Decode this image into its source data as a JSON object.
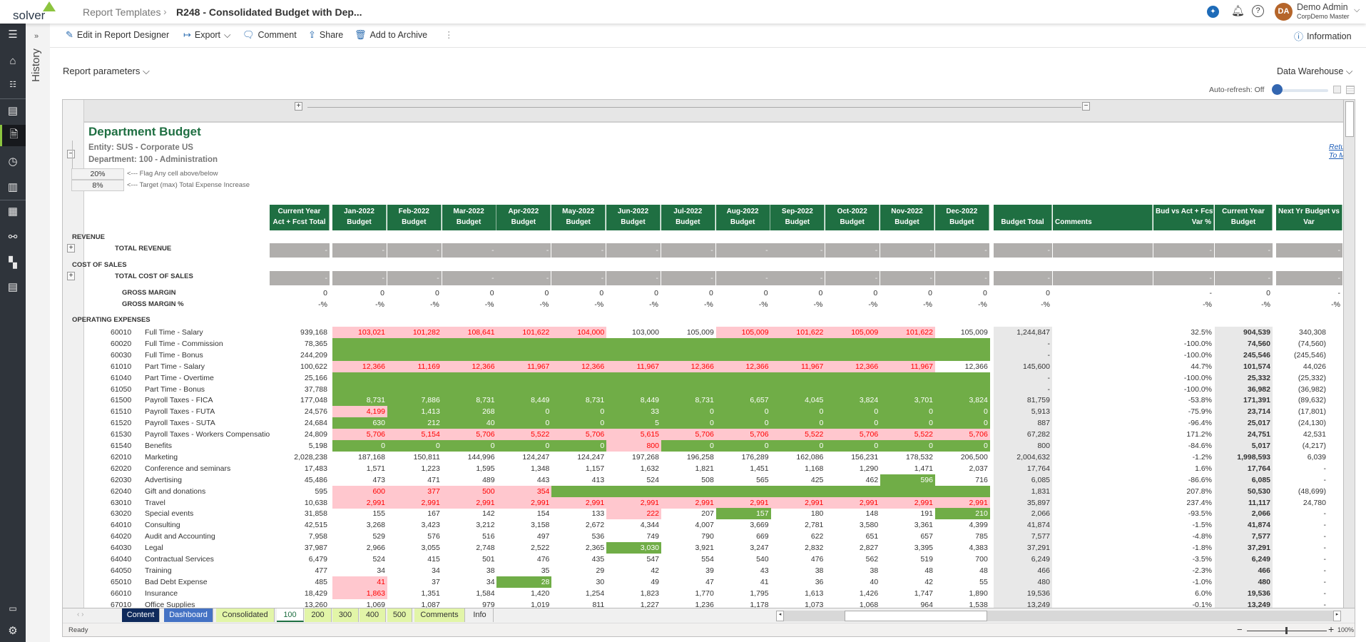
{
  "header": {
    "logo": "solver",
    "breadcrumb": [
      "Report Templates",
      "R248 - Consolidated Budget with Dep..."
    ],
    "user_initials": "DA",
    "user_name": "Demo Admin",
    "user_org": "CorpDemo Master",
    "avatar_color": "#b5652a"
  },
  "sidebar": {
    "icons": [
      "menu-icon",
      "home-icon",
      "tasks-icon",
      "reports-icon",
      "report-templates-icon",
      "history-icon",
      "library-icon",
      "calculator-icon",
      "workflow-icon",
      "dashboard-icon",
      "forms-icon"
    ],
    "bottom_icons": [
      "keyboard-icon",
      "gear-icon"
    ],
    "active": "report-templates-icon",
    "history_label": "History",
    "expand": "»"
  },
  "toolbar": {
    "edit": "Edit in Report Designer",
    "export": "Export",
    "comment": "Comment",
    "share": "Share",
    "archive": "Add to Archive",
    "more": "⋮",
    "information": "Information"
  },
  "params": {
    "label": "Report parameters",
    "data_source": "Data Warehouse",
    "auto_refresh": "Auto-refresh: Off"
  },
  "report": {
    "title": "Department Budget",
    "entity": "Entity: SUS - Corporate US",
    "department": "Department:  100 - Administration",
    "flag_value": "20%",
    "flag_label": "<--- Flag Any cell above/below",
    "target_value": "8%",
    "target_label": "<--- Target (max) Total Expense Increase",
    "return_link": "Return To Ma",
    "colors": {
      "header": "#1f6f42",
      "flag_high": "#ffc7ce",
      "flag_low": "#70ad47"
    },
    "columns": {
      "cy": [
        "Current Year",
        "Act + Fcst Total"
      ],
      "months": [
        "Jan-2022",
        "Feb-2022",
        "Mar-2022",
        "Apr-2022",
        "May-2022",
        "Jun-2022",
        "Jul-2022",
        "Aug-2022",
        "Sep-2022",
        "Oct-2022",
        "Nov-2022",
        "Dec-2022"
      ],
      "month_sub": "Budget",
      "budget_total": "Budget Total",
      "comments": "Comments",
      "budvs": [
        "Bud vs Act + Fcst",
        "Var %"
      ],
      "cybud": [
        "Current Year",
        "Budget"
      ],
      "next": [
        "Next Yr Budget vs CY",
        "Var"
      ]
    },
    "sections": {
      "revenue": "REVENUE",
      "total_revenue": "TOTAL REVENUE",
      "cos": "COST OF SALES",
      "total_cos": "TOTAL COST OF SALES",
      "gm": "GROSS MARGIN",
      "gmp": "GROSS MARGIN %",
      "opex": "OPERATING EXPENSES",
      "dash": "-",
      "zero": "0",
      "pct": "-%"
    },
    "rows": [
      {
        "code": "60010",
        "name": "Full Time - Salary",
        "cy": "939,168",
        "m": [
          "103,021",
          "101,282",
          "108,641",
          "101,622",
          "104,000",
          "103,000",
          "105,009",
          "105,009",
          "101,622",
          "105,009",
          "101,622",
          "105,009"
        ],
        "s": "pppppnnppppn",
        "bt": "1,244,847",
        "var": "32.5%",
        "cyb": "904,539",
        "nx": "340,308"
      },
      {
        "code": "60020",
        "name": "Full Time - Commission",
        "cy": "78,365",
        "m": [
          "",
          "",
          "",
          "",
          "",
          "",
          "",
          "",
          "",
          "",
          "",
          ""
        ],
        "s": "gggggggggggg",
        "bt": "-",
        "var": "-100.0%",
        "cyb": "74,560",
        "nx": "(74,560)"
      },
      {
        "code": "60030",
        "name": "Full Time - Bonus",
        "cy": "244,209",
        "m": [
          "",
          "",
          "",
          "",
          "",
          "",
          "",
          "",
          "",
          "",
          "",
          ""
        ],
        "s": "gggggggggggg",
        "bt": "-",
        "var": "-100.0%",
        "cyb": "245,546",
        "nx": "(245,546)"
      },
      {
        "code": "61010",
        "name": "Part Time - Salary",
        "cy": "100,622",
        "m": [
          "12,366",
          "11,169",
          "12,366",
          "11,967",
          "12,366",
          "11,967",
          "12,366",
          "12,366",
          "11,967",
          "12,366",
          "11,967",
          "12,366"
        ],
        "s": "pppppppppppn",
        "bt": "145,600",
        "var": "44.7%",
        "cyb": "101,574",
        "nx": "44,026"
      },
      {
        "code": "61040",
        "name": "Part Time - Overtime",
        "cy": "25,166",
        "m": [
          "",
          "",
          "",
          "",
          "",
          "",
          "",
          "",
          "",
          "",
          "",
          ""
        ],
        "s": "gggggggggggg",
        "bt": "-",
        "var": "-100.0%",
        "cyb": "25,332",
        "nx": "(25,332)"
      },
      {
        "code": "61050",
        "name": "Part Time - Bonus",
        "cy": "37,788",
        "m": [
          "",
          "",
          "",
          "",
          "",
          "",
          "",
          "",
          "",
          "",
          "",
          ""
        ],
        "s": "gggggggggggg",
        "bt": "-",
        "var": "-100.0%",
        "cyb": "36,982",
        "nx": "(36,982)"
      },
      {
        "code": "61500",
        "name": "Payroll Taxes - FICA",
        "cy": "177,048",
        "m": [
          "8,731",
          "7,886",
          "8,731",
          "8,449",
          "8,731",
          "8,449",
          "8,731",
          "6,657",
          "4,045",
          "3,824",
          "3,701",
          "3,824"
        ],
        "s": "gggggggggggg",
        "bt": "81,759",
        "var": "-53.8%",
        "cyb": "171,391",
        "nx": "(89,632)"
      },
      {
        "code": "61510",
        "name": "Payroll Taxes - FUTA",
        "cy": "24,576",
        "m": [
          "4,199",
          "1,413",
          "268",
          "0",
          "0",
          "33",
          "0",
          "0",
          "0",
          "0",
          "0",
          "0"
        ],
        "s": "pggggggggggg",
        "bt": "5,913",
        "var": "-75.9%",
        "cyb": "23,714",
        "nx": "(17,801)"
      },
      {
        "code": "61520",
        "name": "Payroll Taxes - SUTA",
        "cy": "24,684",
        "m": [
          "630",
          "212",
          "40",
          "0",
          "0",
          "5",
          "0",
          "0",
          "0",
          "0",
          "0",
          "0"
        ],
        "s": "gggggggggggg",
        "bt": "887",
        "var": "-96.4%",
        "cyb": "25,017",
        "nx": "(24,130)"
      },
      {
        "code": "61530",
        "name": "Payroll Taxes - Workers Compensation",
        "cy": "24,809",
        "m": [
          "5,706",
          "5,154",
          "5,706",
          "5,522",
          "5,706",
          "5,615",
          "5,706",
          "5,706",
          "5,522",
          "5,706",
          "5,522",
          "5,706"
        ],
        "s": "pppppppppppp",
        "bt": "67,282",
        "var": "171.2%",
        "cyb": "24,751",
        "nx": "42,531"
      },
      {
        "code": "61540",
        "name": "Benefits",
        "cy": "5,198",
        "m": [
          "0",
          "0",
          "0",
          "0",
          "0",
          "800",
          "0",
          "0",
          "0",
          "0",
          "0",
          "0"
        ],
        "s": "gggggpgggggg",
        "bt": "800",
        "var": "-84.6%",
        "cyb": "5,017",
        "nx": "(4,217)"
      },
      {
        "code": "62010",
        "name": "Marketing",
        "cy": "2,028,238",
        "m": [
          "187,168",
          "150,811",
          "144,996",
          "124,247",
          "124,247",
          "197,268",
          "196,258",
          "176,289",
          "162,086",
          "156,231",
          "178,532",
          "206,500"
        ],
        "s": "nnnnnnnnnnnn",
        "bt": "2,004,632",
        "var": "-1.2%",
        "cyb": "1,998,593",
        "nx": "6,039"
      },
      {
        "code": "62020",
        "name": "Conference and seminars",
        "cy": "17,483",
        "m": [
          "1,571",
          "1,223",
          "1,595",
          "1,348",
          "1,157",
          "1,632",
          "1,821",
          "1,451",
          "1,168",
          "1,290",
          "1,471",
          "2,037"
        ],
        "s": "nnnnnnnnnnnn",
        "bt": "17,764",
        "var": "1.6%",
        "cyb": "17,764",
        "nx": "-"
      },
      {
        "code": "62030",
        "name": "Advertising",
        "cy": "45,486",
        "m": [
          "473",
          "471",
          "489",
          "443",
          "413",
          "524",
          "508",
          "565",
          "425",
          "462",
          "596",
          "716"
        ],
        "s": "nnnnnnnnnngn",
        "bt": "6,085",
        "var": "-86.6%",
        "cyb": "6,085",
        "nx": "-"
      },
      {
        "code": "62040",
        "name": "Gift and donations",
        "cy": "595",
        "m": [
          "600",
          "377",
          "500",
          "354",
          "",
          "",
          "",
          "",
          "",
          "",
          "",
          ""
        ],
        "s": "ppppgggggggg",
        "bt": "1,831",
        "var": "207.8%",
        "cyb": "50,530",
        "nx": "(48,699)"
      },
      {
        "code": "63010",
        "name": "Travel",
        "cy": "10,638",
        "m": [
          "2,991",
          "2,991",
          "2,991",
          "2,991",
          "2,991",
          "2,991",
          "2,991",
          "2,991",
          "2,991",
          "2,991",
          "2,991",
          "2,991"
        ],
        "s": "pppppppppppp",
        "bt": "35,897",
        "var": "237.4%",
        "cyb": "11,117",
        "nx": "24,780"
      },
      {
        "code": "63020",
        "name": "Special events",
        "cy": "31,858",
        "m": [
          "155",
          "167",
          "142",
          "154",
          "133",
          "222",
          "207",
          "157",
          "180",
          "148",
          "191",
          "210"
        ],
        "s": "nnnnnpngnnng",
        "bt": "2,066",
        "var": "-93.5%",
        "cyb": "2,066",
        "nx": "-"
      },
      {
        "code": "64010",
        "name": "Consulting",
        "cy": "42,515",
        "m": [
          "3,268",
          "3,423",
          "3,212",
          "3,158",
          "2,672",
          "4,344",
          "4,007",
          "3,669",
          "2,781",
          "3,580",
          "3,361",
          "4,399"
        ],
        "s": "nnnnnnnnnnnn",
        "bt": "41,874",
        "var": "-1.5%",
        "cyb": "41,874",
        "nx": "-"
      },
      {
        "code": "64020",
        "name": "Audit and Accounting",
        "cy": "7,958",
        "m": [
          "529",
          "576",
          "516",
          "497",
          "536",
          "749",
          "790",
          "669",
          "622",
          "651",
          "657",
          "785"
        ],
        "s": "nnnnnnnnnnnn",
        "bt": "7,577",
        "var": "-4.8%",
        "cyb": "7,577",
        "nx": "-"
      },
      {
        "code": "64030",
        "name": "Legal",
        "cy": "37,987",
        "m": [
          "2,966",
          "3,055",
          "2,748",
          "2,522",
          "2,365",
          "3,030",
          "3,921",
          "3,247",
          "2,832",
          "2,827",
          "3,395",
          "4,383"
        ],
        "s": "nnnnngnnnnnn",
        "bt": "37,291",
        "var": "-1.8%",
        "cyb": "37,291",
        "nx": "-"
      },
      {
        "code": "64040",
        "name": "Contractual Services",
        "cy": "6,479",
        "m": [
          "524",
          "415",
          "501",
          "476",
          "435",
          "547",
          "554",
          "540",
          "476",
          "562",
          "519",
          "700"
        ],
        "s": "nnnnnnnnnnnn",
        "bt": "6,249",
        "var": "-3.5%",
        "cyb": "6,249",
        "nx": "-"
      },
      {
        "code": "64050",
        "name": "Training",
        "cy": "477",
        "m": [
          "34",
          "34",
          "38",
          "35",
          "29",
          "42",
          "39",
          "43",
          "38",
          "38",
          "48",
          "48"
        ],
        "s": "nnnnnnnnnnnn",
        "bt": "466",
        "var": "-2.3%",
        "cyb": "466",
        "nx": "-"
      },
      {
        "code": "65010",
        "name": "Bad Debt Expense",
        "cy": "485",
        "m": [
          "41",
          "37",
          "34",
          "28",
          "30",
          "49",
          "47",
          "41",
          "36",
          "40",
          "42",
          "55"
        ],
        "s": "pnngnnnnnnnn",
        "bt": "480",
        "var": "-1.0%",
        "cyb": "480",
        "nx": "-"
      },
      {
        "code": "66010",
        "name": "Insurance",
        "cy": "18,429",
        "m": [
          "1,863",
          "1,351",
          "1,584",
          "1,420",
          "1,254",
          "1,823",
          "1,770",
          "1,795",
          "1,613",
          "1,426",
          "1,747",
          "1,890"
        ],
        "s": "pnnnnnnnnnnn",
        "bt": "19,536",
        "var": "6.0%",
        "cyb": "19,536",
        "nx": "-"
      },
      {
        "code": "67010",
        "name": "Office Supplies",
        "cy": "13,260",
        "m": [
          "1,069",
          "1,087",
          "979",
          "1,019",
          "811",
          "1,227",
          "1,236",
          "1,178",
          "1,073",
          "1,068",
          "964",
          "1,538"
        ],
        "s": "nnnnnnnnnnnn",
        "bt": "13,249",
        "var": "-0.1%",
        "cyb": "13,249",
        "nx": "-"
      }
    ]
  },
  "sheet_tabs": [
    {
      "label": "Content",
      "bg": "#0f2a5c",
      "fg": "#fff"
    },
    {
      "label": "Dashboard",
      "bg": "#4472c4",
      "fg": "#fff"
    },
    {
      "label": "Consolidated",
      "bg": "#e2f5a8",
      "fg": "#333"
    },
    {
      "label": "100",
      "bg": "#fff",
      "fg": "#1f6f42",
      "active": true
    },
    {
      "label": "200",
      "bg": "#e2f5a8",
      "fg": "#333"
    },
    {
      "label": "300",
      "bg": "#e2f5a8",
      "fg": "#333"
    },
    {
      "label": "400",
      "bg": "#e2f5a8",
      "fg": "#333"
    },
    {
      "label": "500",
      "bg": "#e2f5a8",
      "fg": "#333"
    },
    {
      "label": "Comments",
      "bg": "#e2f5a8",
      "fg": "#333"
    },
    {
      "label": "Info",
      "bg": "#f0f0f0",
      "fg": "#333"
    }
  ],
  "status": {
    "ready": "Ready",
    "zoom": "100%"
  }
}
